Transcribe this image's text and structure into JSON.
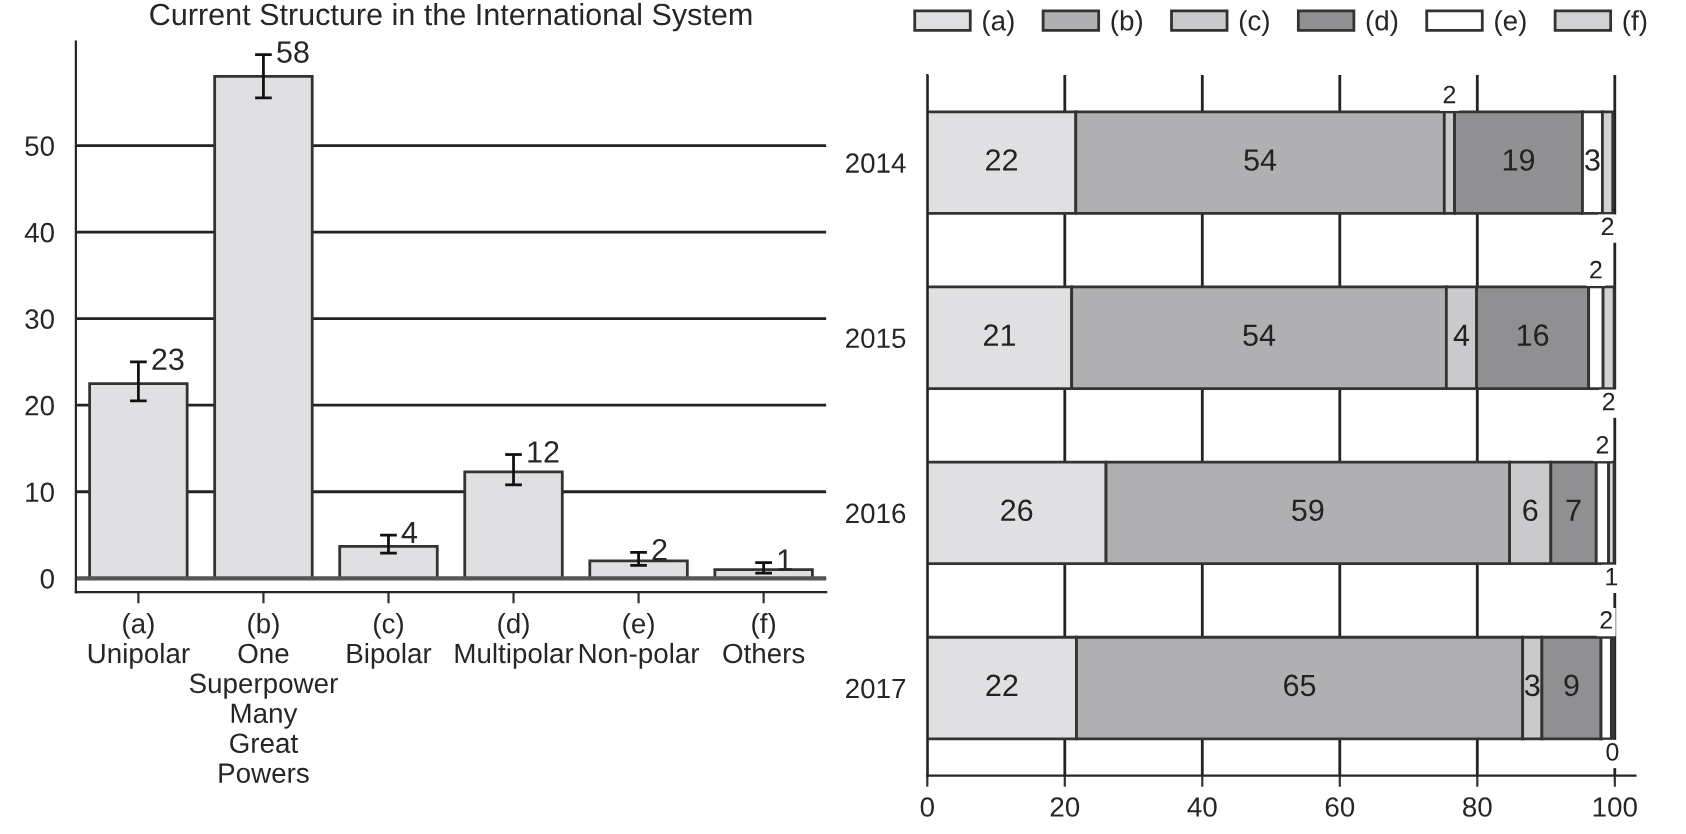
{
  "chart_data": [
    {
      "type": "bar",
      "title": "Current Structure in the International System",
      "categories": [
        "(a)\nUnipolar",
        "(b)\nOne\nSuperpower\nMany\nGreat\nPowers",
        "(c)\nBipolar",
        "(d)\nMultipolar",
        "(e)\nNon-polar",
        "(f)\nOthers"
      ],
      "values": [
        22.5,
        58,
        3.7,
        12.3,
        2,
        1
      ],
      "errors": [
        [
          20.5,
          25
        ],
        [
          55.5,
          60.5
        ],
        [
          2.9,
          5
        ],
        [
          10.8,
          14.3
        ],
        [
          1.5,
          3
        ],
        [
          0.6,
          1.8
        ]
      ],
      "value_labels": [
        "23",
        "58",
        "4",
        "12",
        "2",
        "1"
      ],
      "color": "#e0e0e2",
      "ylim": [
        -1.6,
        62
      ],
      "yticks": [
        0,
        10,
        20,
        30,
        40,
        50
      ],
      "grid": "y"
    },
    {
      "type": "bar",
      "orientation": "horizontal",
      "stacked": true,
      "categories": [
        "2014",
        "2015",
        "2016",
        "2017"
      ],
      "series": [
        {
          "name": "(a)",
          "color": "#e0e0e2",
          "values": [
            21.6,
            21,
            26,
            21.7
          ],
          "value_labels": [
            "22",
            "21",
            "26",
            "22"
          ]
        },
        {
          "name": "(b)",
          "color": "#b0b0b2",
          "values": [
            53.6,
            54.5,
            58.7,
            64.9
          ],
          "value_labels": [
            "54",
            "54",
            "59",
            "65"
          ]
        },
        {
          "name": "(c)",
          "color": "#cacacc",
          "values": [
            1.5,
            4.4,
            6,
            2.8
          ],
          "value_labels": [
            "2",
            "4",
            "6",
            "3"
          ]
        },
        {
          "name": "(d)",
          "color": "#909092",
          "values": [
            18.6,
            16.3,
            6.6,
            8.6
          ],
          "value_labels": [
            "19",
            "16",
            "7",
            "9"
          ]
        },
        {
          "name": "(e)",
          "color": "#ffffff",
          "values": [
            2.9,
            2.1,
            1.8,
            1.5
          ],
          "value_labels": [
            "3",
            "2",
            "2",
            "2"
          ]
        },
        {
          "name": "(f)",
          "color": "#d2d2d4",
          "values": [
            1.5,
            1.6,
            0.8,
            0.3
          ],
          "value_labels": [
            "2",
            "2",
            "1",
            "0"
          ]
        }
      ],
      "xlim": [
        0,
        103
      ],
      "xticks": [
        0,
        20,
        40,
        60,
        80,
        100
      ],
      "grid": "x",
      "legend": "top"
    }
  ]
}
